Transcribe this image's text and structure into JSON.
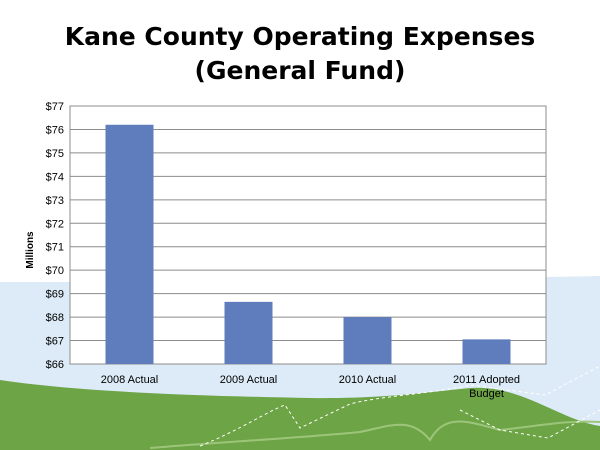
{
  "slide": {
    "title_line1": "Kane County Operating Expenses",
    "title_line2": "(General Fund)"
  },
  "colors": {
    "bar": "#5f7dbc",
    "grid": "#8c8c8c",
    "background_wave_light": "#dcebf7",
    "background_wave_green": "#6da446",
    "background_wave_green_light": "#9dc57a"
  },
  "chart_data": {
    "type": "bar",
    "categories": [
      "2008 Actual",
      "2009 Actual",
      "2010 Actual",
      "2011 Adopted Budget"
    ],
    "category_lines": [
      [
        "2008 Actual"
      ],
      [
        "2009 Actual"
      ],
      [
        "2010 Actual"
      ],
      [
        "2011 Adopted",
        "Budget"
      ]
    ],
    "values": [
      76.2,
      68.65,
      68.0,
      67.05
    ],
    "ylabel": "Millions",
    "ylim": [
      66,
      77
    ],
    "yticks": [
      66,
      67,
      68,
      69,
      70,
      71,
      72,
      73,
      74,
      75,
      76,
      77
    ],
    "ytick_labels": [
      "$66",
      "$67",
      "$68",
      "$69",
      "$70",
      "$71",
      "$72",
      "$73",
      "$74",
      "$75",
      "$76",
      "$77"
    ],
    "grid": true,
    "legend": false
  }
}
